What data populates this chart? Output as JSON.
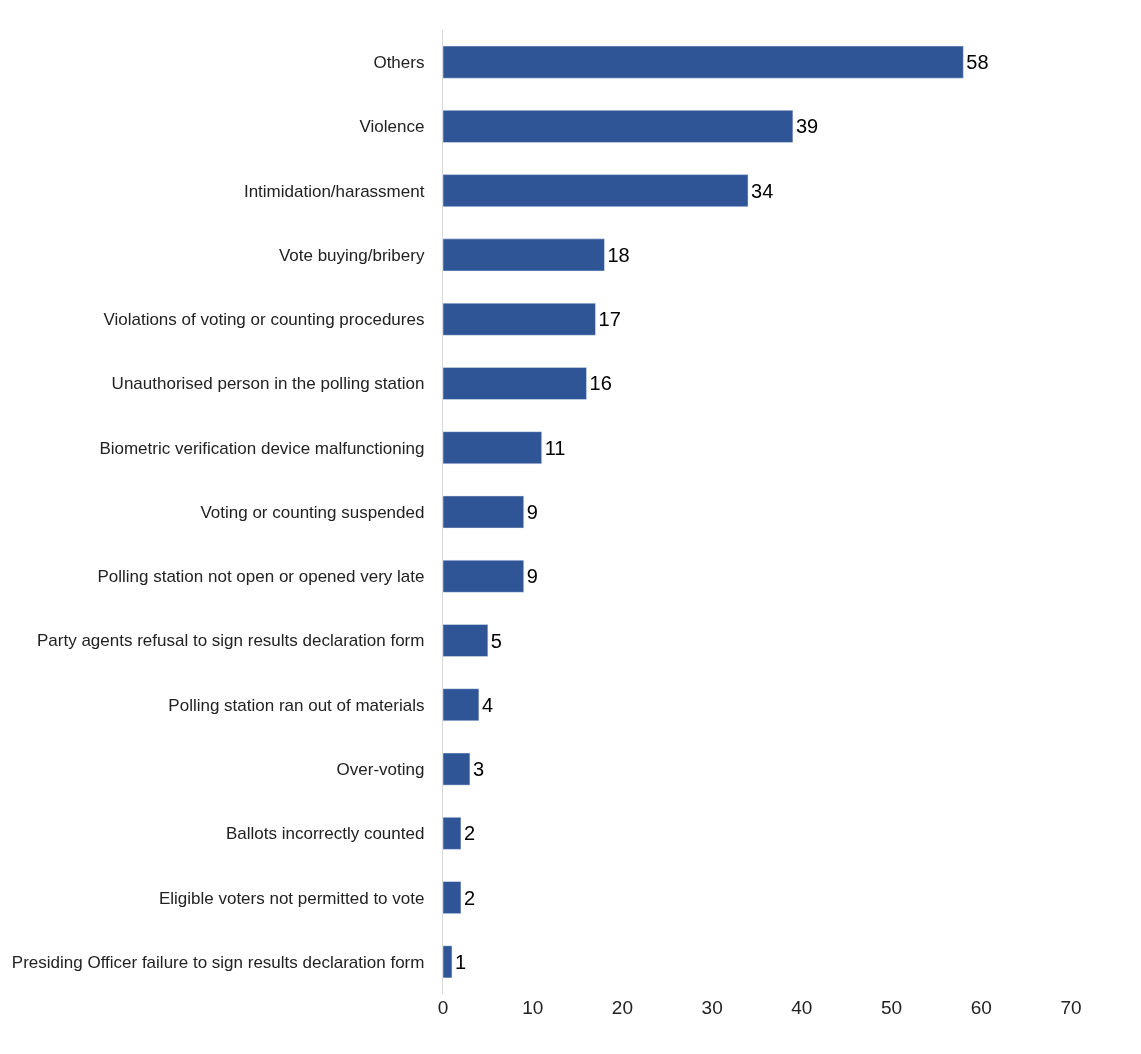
{
  "chart_data": {
    "type": "bar",
    "orientation": "horizontal",
    "categories": [
      "Others",
      "Violence",
      "Intimidation/harassment",
      "Vote buying/bribery",
      "Violations of voting or counting procedures",
      "Unauthorised person in the polling station",
      "Biometric verification device malfunctioning",
      "Voting or counting suspended",
      "Polling station not open or opened very late",
      "Party agents refusal to sign results declaration form",
      "Polling station ran out of materials",
      "Over-voting",
      "Ballots incorrectly counted",
      "Eligible voters not permitted to vote",
      "Presiding Officer failure to sign results declaration form"
    ],
    "values": [
      58,
      39,
      34,
      18,
      17,
      16,
      11,
      9,
      9,
      5,
      4,
      3,
      2,
      2,
      1
    ],
    "color": "#2f5597",
    "xlim": [
      0,
      70
    ],
    "xticks": [
      0,
      10,
      20,
      30,
      40,
      50,
      60,
      70
    ],
    "data_labels": true
  }
}
